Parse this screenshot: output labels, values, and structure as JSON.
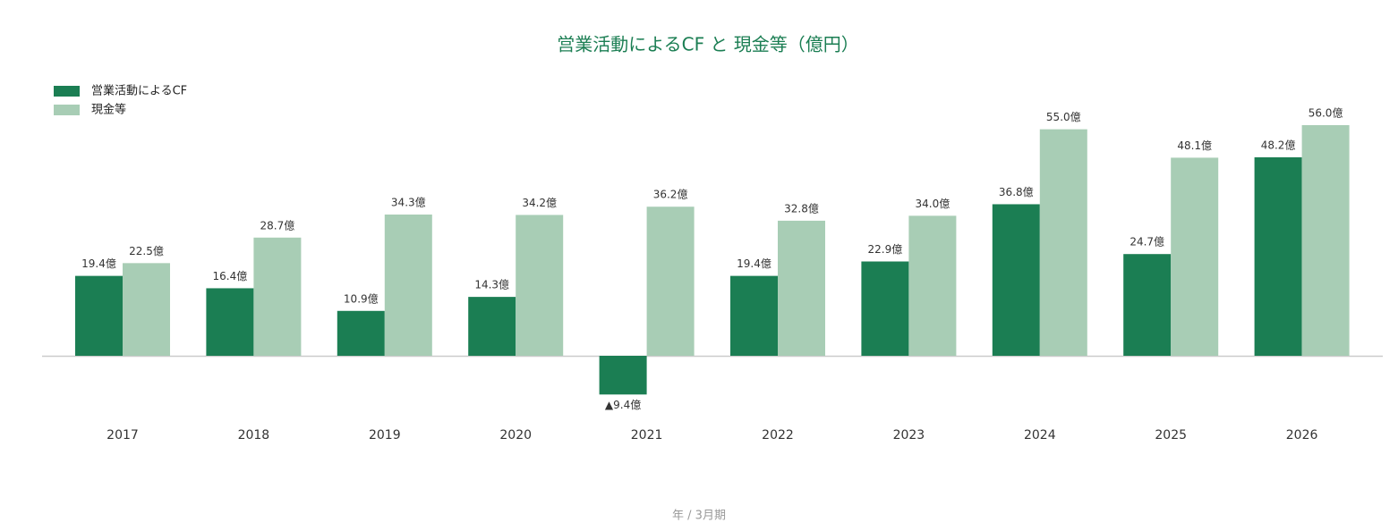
{
  "chart_data": {
    "type": "bar",
    "title": "営業活動によるCF と 現金等（億円）",
    "x_label": "年 / 3月期",
    "categories": [
      "2017",
      "2018",
      "2019",
      "2020",
      "2021",
      "2022",
      "2023",
      "2024",
      "2025",
      "2026"
    ],
    "series": [
      {
        "name": "営業活動によるCF",
        "color": "#1b7e53",
        "values": [
          19.4,
          16.4,
          10.9,
          14.3,
          -9.4,
          19.4,
          22.9,
          36.8,
          24.7,
          48.2
        ],
        "value_labels": [
          "19.4億",
          "16.4億",
          "10.9億",
          "14.3億",
          "▲9.4億",
          "19.4億",
          "22.9億",
          "36.8億",
          "24.7億",
          "48.2億"
        ]
      },
      {
        "name": "現金等",
        "color": "#a8cdb5",
        "values": [
          22.5,
          28.7,
          34.3,
          34.2,
          36.2,
          32.8,
          34.0,
          55.0,
          48.1,
          56.0
        ],
        "value_labels": [
          "22.5億",
          "28.7億",
          "34.3億",
          "34.2億",
          "36.2億",
          "32.8億",
          "34.0億",
          "55.0億",
          "48.1億",
          "56.0億"
        ]
      }
    ],
    "legend": "top-left"
  }
}
